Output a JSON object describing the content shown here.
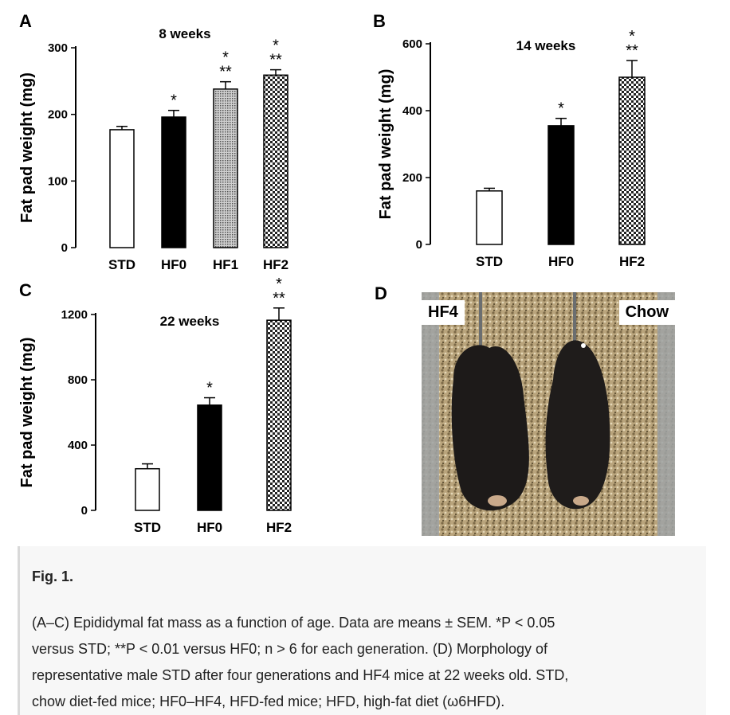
{
  "panels": {
    "A": "A",
    "B": "B",
    "C": "C",
    "D": "D"
  },
  "chart_data": [
    {
      "type": "bar",
      "panel": "A",
      "title": "8 weeks",
      "ylabel": "Fat pad  weight (mg)",
      "ylim": [
        0,
        300
      ],
      "yticks": [
        0,
        100,
        200,
        300
      ],
      "categories": [
        "STD",
        "HF0",
        "HF1",
        "HF2"
      ],
      "values": [
        177,
        196,
        238,
        259
      ],
      "errors": [
        5,
        10,
        11,
        8
      ],
      "fills": [
        "white",
        "black",
        "gray-dots",
        "checker"
      ],
      "significance": [
        {
          "single": "",
          "double": ""
        },
        {
          "single": "*",
          "double": ""
        },
        {
          "single": "*",
          "double": "**"
        },
        {
          "single": "*",
          "double": "**"
        }
      ]
    },
    {
      "type": "bar",
      "panel": "B",
      "title": "14 weeks",
      "ylabel": "Fat pad  weight (mg)",
      "ylim": [
        0,
        600
      ],
      "yticks": [
        0,
        200,
        400,
        600
      ],
      "categories": [
        "STD",
        "HF0",
        "HF2"
      ],
      "values": [
        160,
        355,
        500
      ],
      "errors": [
        8,
        22,
        50
      ],
      "fills": [
        "white",
        "black",
        "checker"
      ],
      "significance": [
        {
          "single": "",
          "double": ""
        },
        {
          "single": "*",
          "double": ""
        },
        {
          "single": "*",
          "double": "**"
        }
      ]
    },
    {
      "type": "bar",
      "panel": "C",
      "title": "22 weeks",
      "ylabel": "Fat pad  weight (mg)",
      "ylim": [
        0,
        1400
      ],
      "yticks": [
        0,
        400,
        800,
        1200
      ],
      "categories": [
        "STD",
        "HF0",
        "HF2"
      ],
      "values": [
        255,
        645,
        1165
      ],
      "errors": [
        30,
        45,
        75
      ],
      "fills": [
        "white",
        "black",
        "checker"
      ],
      "significance": [
        {
          "single": "",
          "double": ""
        },
        {
          "single": "*",
          "double": ""
        },
        {
          "single": "*",
          "double": "**"
        }
      ]
    }
  ],
  "photo": {
    "left_label": "HF4",
    "right_label": "Chow"
  },
  "caption": {
    "title": "Fig. 1.",
    "lines": [
      "(A–C) Epididymal fat mass as a function of age. Data are means ± SEM. *P < 0.05",
      "versus STD; **P < 0.01 versus HF0; n > 6 for each generation. (D) Morphology of",
      "representative male STD after four generations and HF4 mice at 22 weeks old. STD,",
      "chow diet-fed mice; HF0–HF4, HFD-fed mice; HFD, high-fat diet (ω6HFD)."
    ]
  }
}
